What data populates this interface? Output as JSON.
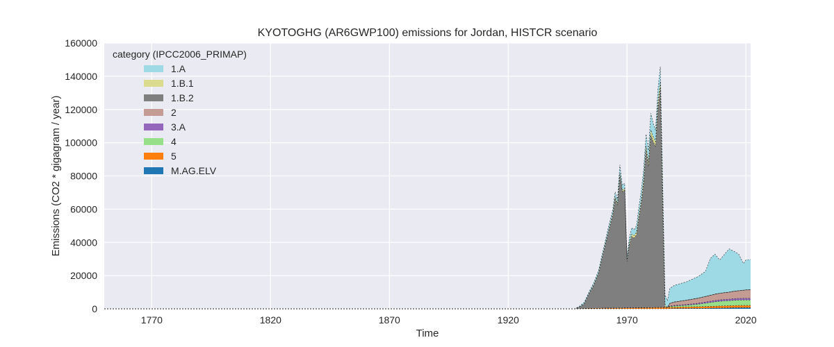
{
  "chart_data": {
    "type": "area",
    "title": "KYOTOGHG (AR6GWP100) emissions for Jordan, HISTCR scenario",
    "xlabel": "Time",
    "ylabel": "Emissions (CO2 * gigagram / year)",
    "xlim": [
      1750,
      2022
    ],
    "ylim": [
      0,
      160000
    ],
    "xticks": [
      1770,
      1820,
      1870,
      1920,
      1970,
      2020
    ],
    "yticks": [
      0,
      20000,
      40000,
      60000,
      80000,
      100000,
      120000,
      140000,
      160000
    ],
    "grid": true,
    "legend_title": "category (IPCC2006_PRIMAP)",
    "legend_position": "top-left",
    "x": [
      1750,
      1948,
      1950,
      1952,
      1954,
      1956,
      1958,
      1960,
      1962,
      1964,
      1965,
      1966,
      1967,
      1968,
      1969,
      1970,
      1971,
      1972,
      1973,
      1974,
      1975,
      1976,
      1977,
      1978,
      1979,
      1980,
      1981,
      1982,
      1983,
      1984,
      1985,
      1986,
      1987,
      1988,
      1990,
      1995,
      2000,
      2003,
      2005,
      2007,
      2009,
      2011,
      2013,
      2015,
      2017,
      2019,
      2020,
      2021,
      2022
    ],
    "series": [
      {
        "name": "M.AG.ELV",
        "color": "#1f77b4",
        "values": [
          0,
          0,
          0,
          0,
          0,
          0,
          0,
          0,
          0,
          0,
          0,
          0,
          0,
          0,
          0,
          0,
          0,
          0,
          0,
          0,
          0,
          0,
          0,
          0,
          0,
          0,
          0,
          0,
          0,
          0,
          0,
          0,
          0,
          150,
          200,
          250,
          300,
          350,
          400,
          450,
          500,
          550,
          600,
          650,
          700,
          700,
          700,
          700,
          700
        ]
      },
      {
        "name": "5",
        "color": "#ff7f0e",
        "values": [
          0,
          0,
          100,
          150,
          200,
          250,
          300,
          350,
          400,
          450,
          450,
          500,
          500,
          500,
          550,
          550,
          550,
          550,
          600,
          600,
          600,
          650,
          650,
          650,
          700,
          700,
          700,
          750,
          750,
          750,
          800,
          800,
          800,
          800,
          800,
          900,
          1000,
          1050,
          1100,
          1150,
          1200,
          1250,
          1300,
          1300,
          1350,
          1350,
          1350,
          1350,
          1350
        ]
      },
      {
        "name": "4",
        "color": "#98df8a",
        "values": [
          0,
          0,
          0,
          0,
          0,
          0,
          0,
          0,
          0,
          0,
          0,
          0,
          0,
          0,
          0,
          0,
          0,
          0,
          0,
          0,
          0,
          0,
          0,
          0,
          0,
          0,
          0,
          0,
          0,
          0,
          0,
          0,
          0,
          500,
          700,
          1000,
          1500,
          2000,
          2300,
          2600,
          2800,
          3000,
          3000,
          3200,
          3200,
          3300,
          3300,
          3300,
          3300
        ]
      },
      {
        "name": "3.A",
        "color": "#9467bd",
        "values": [
          0,
          0,
          0,
          0,
          0,
          0,
          0,
          0,
          0,
          0,
          0,
          0,
          0,
          0,
          0,
          0,
          0,
          0,
          0,
          0,
          0,
          0,
          0,
          0,
          0,
          0,
          0,
          0,
          0,
          0,
          0,
          0,
          0,
          300,
          400,
          500,
          600,
          700,
          800,
          800,
          900,
          900,
          900,
          1000,
          1000,
          1000,
          1000,
          1000,
          1000
        ]
      },
      {
        "name": "2",
        "color": "#c49c94",
        "values": [
          0,
          0,
          0,
          0,
          0,
          0,
          0,
          0,
          0,
          0,
          0,
          0,
          0,
          0,
          0,
          0,
          0,
          0,
          0,
          0,
          0,
          0,
          0,
          0,
          0,
          0,
          0,
          0,
          0,
          0,
          0,
          0,
          0,
          1500,
          2000,
          2500,
          3000,
          3300,
          3500,
          3800,
          3900,
          4000,
          4200,
          4400,
          4600,
          4800,
          5000,
          5000,
          5200
        ]
      },
      {
        "name": "1.B.2",
        "color": "#7f7f7f",
        "values": [
          0,
          0,
          1000,
          3000,
          9000,
          14000,
          21000,
          33000,
          45000,
          56000,
          66000,
          62000,
          80000,
          70000,
          71000,
          28000,
          38000,
          43000,
          42000,
          44000,
          54000,
          63000,
          75000,
          95000,
          85000,
          104000,
          100000,
          97000,
          120000,
          132000,
          60000,
          200,
          0,
          0,
          0,
          0,
          0,
          0,
          0,
          0,
          0,
          0,
          0,
          0,
          0,
          0,
          0,
          0,
          0
        ]
      },
      {
        "name": "1.B.1",
        "color": "#dbdb8d",
        "values": [
          0,
          0,
          0,
          0,
          0,
          200,
          300,
          500,
          600,
          800,
          1000,
          1000,
          1200,
          1000,
          1000,
          1000,
          1100,
          1300,
          1500,
          1600,
          1800,
          2000,
          2200,
          2500,
          2600,
          3000,
          3000,
          2800,
          3500,
          4000,
          6000,
          1500,
          0,
          100,
          100,
          100,
          100,
          100,
          100,
          100,
          100,
          100,
          100,
          100,
          100,
          100,
          100,
          100,
          100
        ]
      },
      {
        "name": "1.A",
        "color": "#9edae5",
        "values": [
          0,
          0,
          500,
          800,
          1000,
          1200,
          1500,
          1800,
          2200,
          2500,
          3000,
          2500,
          5000,
          3000,
          3000,
          2500,
          3000,
          4000,
          3500,
          4000,
          5000,
          5500,
          6000,
          7000,
          7000,
          10000,
          8000,
          7000,
          8000,
          9000,
          10000,
          6000,
          4000,
          9000,
          10000,
          11000,
          13000,
          15000,
          22000,
          24000,
          20000,
          23000,
          26000,
          24000,
          22000,
          16000,
          18000,
          18000,
          18000
        ]
      }
    ]
  }
}
